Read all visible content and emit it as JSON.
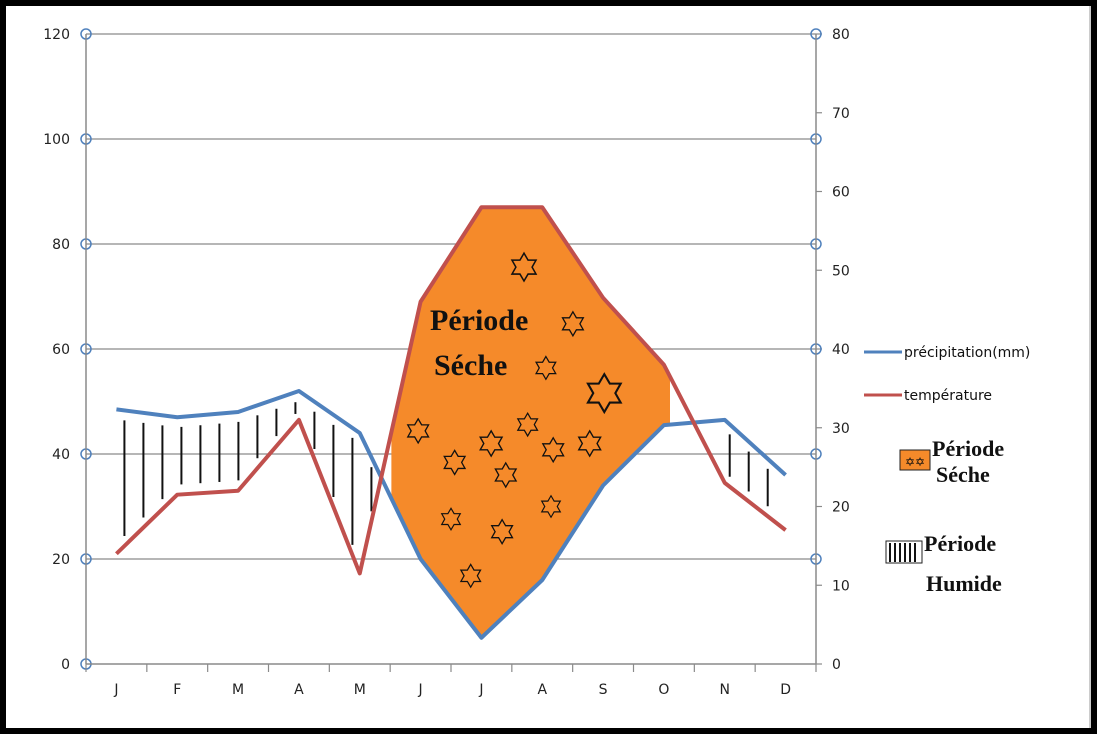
{
  "chart_data": {
    "type": "line",
    "categories": [
      "J",
      "F",
      "M",
      "A",
      "M",
      "J",
      "J",
      "A",
      "S",
      "O",
      "N",
      "D"
    ],
    "y_left": {
      "min": 0,
      "max": 120,
      "ticks": [
        0,
        20,
        40,
        60,
        80,
        100,
        120
      ]
    },
    "y_right": {
      "min": 0,
      "max": 80,
      "ticks": [
        0,
        10,
        20,
        30,
        40,
        50,
        60,
        70,
        80
      ]
    },
    "series": [
      {
        "name": "précipitation(mm)",
        "axis": "left",
        "color": "#4f81bd",
        "values": [
          48.5,
          47,
          48,
          52,
          44,
          20,
          5,
          16,
          34,
          45.5,
          46.5,
          36
        ]
      },
      {
        "name": "température",
        "axis": "right",
        "color": "#c0504d",
        "values": [
          14,
          21.5,
          22,
          31,
          11.5,
          46,
          58,
          58,
          46.5,
          38,
          23,
          17
        ]
      }
    ],
    "dry_fill_color": "#f58a2a",
    "annotation": {
      "line1": "Période",
      "line2": "Séche"
    },
    "legend_areas": [
      {
        "line1": "Période",
        "line2": "Séche"
      },
      {
        "line1": "Période",
        "line2": "Humide"
      }
    ],
    "grid": true
  }
}
